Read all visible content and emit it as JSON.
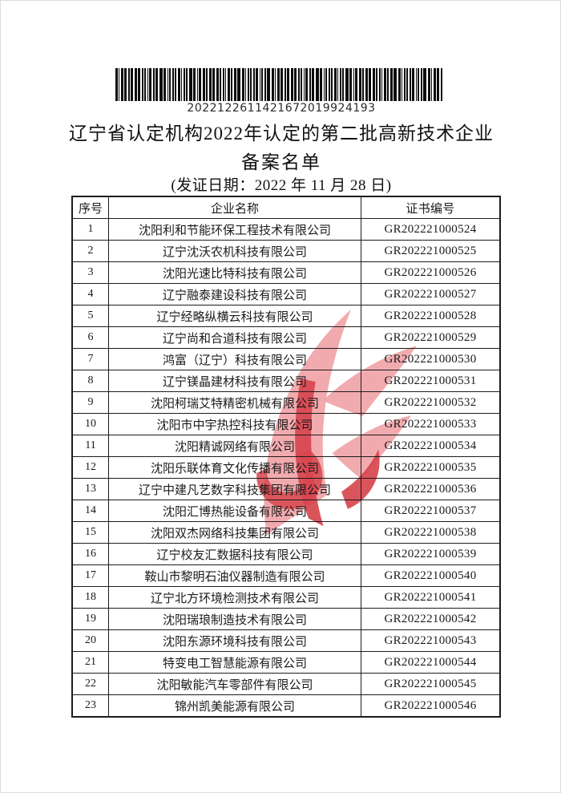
{
  "page": {
    "barcode": {
      "value": "2022122611421672019924193"
    },
    "title_line1": "辽宁省认定机构2022年认定的第二批高新技术企业",
    "title_line2": "备案名单",
    "date_line": "(发证日期：2022 年 11 月 28 日)",
    "watermark": {
      "name": "red-flame-emblem-watermark",
      "color_light": "#f0a2a6",
      "color_dark": "#d7454e"
    }
  },
  "table": {
    "headers": [
      "序号",
      "企业名称",
      "证书编号"
    ],
    "rows": [
      {
        "no": "1",
        "name": "沈阳利和节能环保工程技术有限公司",
        "cert": "GR202221000524"
      },
      {
        "no": "2",
        "name": "辽宁沈沃农机科技有限公司",
        "cert": "GR202221000525"
      },
      {
        "no": "3",
        "name": "沈阳光速比特科技有限公司",
        "cert": "GR202221000526"
      },
      {
        "no": "4",
        "name": "辽宁融泰建设科技有限公司",
        "cert": "GR202221000527"
      },
      {
        "no": "5",
        "name": "辽宁经略纵横云科技有限公司",
        "cert": "GR202221000528"
      },
      {
        "no": "6",
        "name": "辽宁尚和合道科技有限公司",
        "cert": "GR202221000529"
      },
      {
        "no": "7",
        "name": "鸿富（辽宁）科技有限公司",
        "cert": "GR202221000530"
      },
      {
        "no": "8",
        "name": "辽宁镁晶建材科技有限公司",
        "cert": "GR202221000531"
      },
      {
        "no": "9",
        "name": "沈阳柯瑞艾特精密机械有限公司",
        "cert": "GR202221000532"
      },
      {
        "no": "10",
        "name": "沈阳市中宇热控科技有限公司",
        "cert": "GR202221000533"
      },
      {
        "no": "11",
        "name": "沈阳精诚网络有限公司",
        "cert": "GR202221000534"
      },
      {
        "no": "12",
        "name": "沈阳乐联体育文化传播有限公司",
        "cert": "GR202221000535"
      },
      {
        "no": "13",
        "name": "辽宁中建凡艺数字科技集团有限公司",
        "cert": "GR202221000536"
      },
      {
        "no": "14",
        "name": "沈阳汇博热能设备有限公司",
        "cert": "GR202221000537"
      },
      {
        "no": "15",
        "name": "沈阳双杰网络科技集团有限公司",
        "cert": "GR202221000538"
      },
      {
        "no": "16",
        "name": "辽宁校友汇数据科技有限公司",
        "cert": "GR202221000539"
      },
      {
        "no": "17",
        "name": "鞍山市黎明石油仪器制造有限公司",
        "cert": "GR202221000540"
      },
      {
        "no": "18",
        "name": "辽宁北方环境检测技术有限公司",
        "cert": "GR202221000541"
      },
      {
        "no": "19",
        "name": "沈阳瑞琅制造技术有限公司",
        "cert": "GR202221000542"
      },
      {
        "no": "20",
        "name": "沈阳东源环境科技有限公司",
        "cert": "GR202221000543"
      },
      {
        "no": "21",
        "name": "特变电工智慧能源有限公司",
        "cert": "GR202221000544"
      },
      {
        "no": "22",
        "name": "沈阳敏能汽车零部件有限公司",
        "cert": "GR202221000545"
      },
      {
        "no": "23",
        "name": "锦州凯美能源有限公司",
        "cert": "GR202221000546"
      }
    ]
  }
}
